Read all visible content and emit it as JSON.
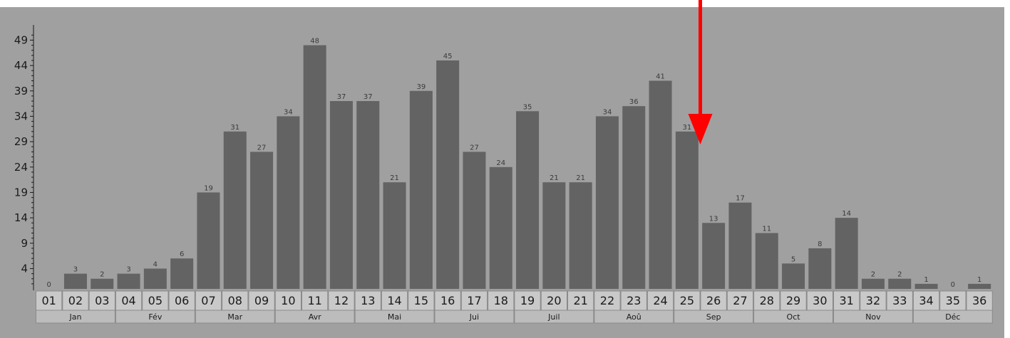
{
  "chart_data": {
    "type": "bar",
    "categories": [
      "01",
      "02",
      "03",
      "04",
      "05",
      "06",
      "07",
      "08",
      "09",
      "10",
      "11",
      "12",
      "13",
      "14",
      "15",
      "16",
      "17",
      "18",
      "19",
      "20",
      "21",
      "22",
      "23",
      "24",
      "25",
      "26",
      "27",
      "28",
      "29",
      "30",
      "31",
      "32",
      "33",
      "34",
      "35",
      "36"
    ],
    "values": [
      0,
      3,
      2,
      3,
      4,
      6,
      19,
      31,
      27,
      34,
      48,
      37,
      37,
      21,
      39,
      45,
      27,
      24,
      35,
      21,
      21,
      34,
      36,
      41,
      31,
      13,
      17,
      11,
      5,
      8,
      14,
      2,
      2,
      1,
      0,
      1
    ],
    "value_labels": [
      "0",
      "3",
      "2",
      "3",
      "4",
      "6",
      "19",
      "31",
      "27",
      "34",
      "48",
      "37",
      "37",
      "21",
      "39",
      "45",
      "27",
      "24",
      "35",
      "21",
      "21",
      "34",
      "36",
      "41",
      "31",
      "13",
      "17",
      "11",
      "5",
      "8",
      "14",
      "2",
      "2",
      "1",
      "0",
      "1"
    ],
    "yticks": [
      "4",
      "9",
      "14",
      "19",
      "24",
      "29",
      "34",
      "39",
      "44",
      "49"
    ],
    "ylim": [
      0,
      52
    ],
    "months": [
      {
        "label": "Jan",
        "start": 0,
        "end": 3
      },
      {
        "label": "Fév",
        "start": 3,
        "end": 6
      },
      {
        "label": "Mar",
        "start": 6,
        "end": 9
      },
      {
        "label": "Avr",
        "start": 9,
        "end": 12
      },
      {
        "label": "Mai",
        "start": 12,
        "end": 15
      },
      {
        "label": "Jui",
        "start": 15,
        "end": 18
      },
      {
        "label": "Juil",
        "start": 18,
        "end": 21
      },
      {
        "label": "Aoû",
        "start": 21,
        "end": 24
      },
      {
        "label": "Sep",
        "start": 24,
        "end": 27
      },
      {
        "label": "Oct",
        "start": 27,
        "end": 30
      },
      {
        "label": "Nov",
        "start": 30,
        "end": 33
      },
      {
        "label": "Déc",
        "start": 33,
        "end": 36
      }
    ],
    "annotation": {
      "type": "arrow",
      "color": "#ff0000",
      "points_to_category": "26"
    },
    "colors": {
      "background": "#a0a0a0",
      "bar": "#636363",
      "axis_row": "#c9c9c9",
      "month_row": "#bcbcbc",
      "cell_border": "#8a8a8a"
    },
    "grid": false,
    "legend": "none"
  }
}
